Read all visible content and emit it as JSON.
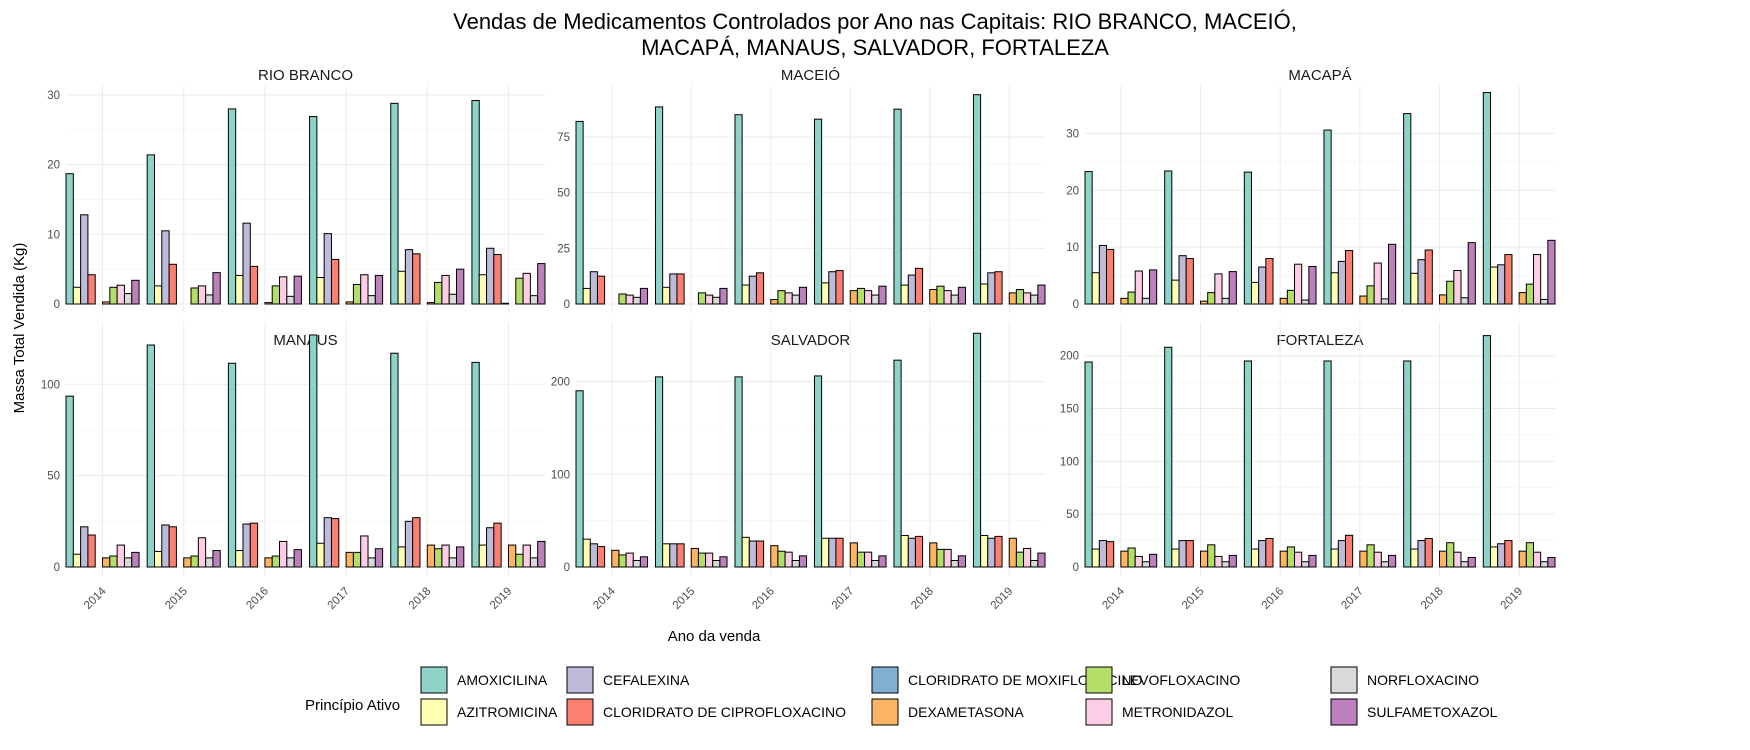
{
  "chart_data": {
    "type": "bar",
    "title_line1": "Vendas de Medicamentos Controlados por Ano nas Capitais: RIO BRANCO, MACEIÓ,",
    "title_line2": "MACAPÁ, MANAUS, SALVADOR, FORTALEZA",
    "xlabel": "Ano da venda",
    "ylabel": "Massa Total Vendida (Kg)",
    "legend_title": "Princípio Ativo",
    "legend_position": "bottom",
    "grid": true,
    "years": [
      "2014",
      "2015",
      "2016",
      "2017",
      "2018",
      "2019"
    ],
    "substances": [
      {
        "name": "AMOXICILINA",
        "color": "#8DD3C7"
      },
      {
        "name": "AZITROMICINA",
        "color": "#FFFFB3"
      },
      {
        "name": "CEFALEXINA",
        "color": "#BEBADA"
      },
      {
        "name": "CLORIDRATO DE CIPROFLOXACINO",
        "color": "#FB8072"
      },
      {
        "name": "CLORIDRATO DE MOXIFLOXACINO",
        "color": "#80B1D3"
      },
      {
        "name": "DEXAMETASONA",
        "color": "#FDB462"
      },
      {
        "name": "LEVOFLOXACINO",
        "color": "#B3DE69"
      },
      {
        "name": "METRONIDAZOL",
        "color": "#FCCDE5"
      },
      {
        "name": "NORFLOXACINO",
        "color": "#D9D9D9"
      },
      {
        "name": "SULFAMETOXAZOL",
        "color": "#BC80BD"
      }
    ],
    "panels": [
      {
        "name": "RIO BRANCO",
        "ylim": [
          0,
          31
        ],
        "yticks": [
          0,
          10,
          20,
          30
        ],
        "values": [
          [
            18.7,
            2.4,
            12.8,
            4.2,
            0,
            0.3,
            2.4,
            2.7,
            1.5,
            3.4
          ],
          [
            21.4,
            2.6,
            10.5,
            5.7,
            0,
            0,
            2.3,
            2.6,
            1.3,
            4.5
          ],
          [
            28.0,
            4.1,
            11.6,
            5.4,
            0,
            0.2,
            2.6,
            3.9,
            1.1,
            4.0
          ],
          [
            26.9,
            3.8,
            10.1,
            6.4,
            0,
            0.3,
            2.8,
            4.2,
            1.2,
            4.1
          ],
          [
            28.8,
            4.7,
            7.8,
            7.2,
            0,
            0.2,
            3.1,
            4.1,
            1.4,
            5.0
          ],
          [
            29.2,
            4.2,
            8.0,
            7.1,
            0.1,
            0,
            3.7,
            4.4,
            1.2,
            5.8
          ]
        ]
      },
      {
        "name": "MACEIÓ",
        "ylim": [
          0,
          97
        ],
        "yticks": [
          0,
          25,
          50,
          75
        ],
        "values": [
          [
            82,
            7,
            14.5,
            12.5,
            0,
            0,
            4.5,
            4,
            3,
            7
          ],
          [
            88.5,
            7.5,
            13.5,
            13.5,
            0,
            0,
            5,
            4,
            3,
            7
          ],
          [
            85,
            8.5,
            12.5,
            14,
            0,
            2,
            6,
            5,
            4,
            7.5
          ],
          [
            83,
            9.5,
            14.5,
            15,
            0,
            6,
            7,
            6,
            4,
            8
          ],
          [
            87.5,
            8.5,
            13,
            16,
            0,
            6.5,
            8,
            6,
            4,
            7.5
          ],
          [
            94,
            9,
            14,
            14.5,
            0,
            5,
            6.5,
            5,
            4,
            8.5
          ]
        ]
      },
      {
        "name": "MACAPÁ",
        "ylim": [
          0,
          38
        ],
        "yticks": [
          0,
          10,
          20,
          30
        ],
        "values": [
          [
            23.3,
            5.5,
            10.3,
            9.6,
            0,
            1.0,
            2.1,
            5.8,
            1.0,
            6.0
          ],
          [
            23.4,
            4.2,
            8.5,
            8.0,
            0,
            0.5,
            2.0,
            5.3,
            1.0,
            5.7
          ],
          [
            23.2,
            3.8,
            6.5,
            8.0,
            0,
            1.0,
            2.4,
            7.0,
            0.7,
            6.6
          ],
          [
            30.6,
            5.5,
            7.5,
            9.4,
            0,
            1.4,
            3.2,
            7.2,
            0.9,
            10.5
          ],
          [
            33.5,
            5.4,
            7.8,
            9.5,
            0,
            1.6,
            4.0,
            5.9,
            1.1,
            10.8
          ],
          [
            37.2,
            6.5,
            6.9,
            8.7,
            0,
            2.0,
            3.5,
            8.7,
            0.8,
            11.2
          ]
        ]
      },
      {
        "name": "MANAUS",
        "ylim": [
          0,
          133
        ],
        "yticks": [
          0,
          50,
          100
        ],
        "values": [
          [
            93.5,
            7,
            22,
            17.5,
            0,
            5,
            6,
            12,
            5,
            8
          ],
          [
            121.5,
            8.5,
            23,
            22,
            0,
            5,
            6,
            16,
            5,
            9
          ],
          [
            111.5,
            9,
            23.5,
            24,
            0,
            5,
            6,
            14,
            5,
            9.5
          ],
          [
            127,
            13,
            27,
            26.5,
            0,
            8,
            8,
            17,
            5,
            10
          ],
          [
            117,
            11,
            25,
            27,
            0,
            12,
            10,
            12,
            5,
            11
          ],
          [
            112,
            12,
            21.5,
            24,
            0,
            12,
            7,
            12,
            5,
            14
          ]
        ]
      },
      {
        "name": "SALVADOR",
        "ylim": [
          0,
          262
        ],
        "yticks": [
          0,
          100,
          200
        ],
        "values": [
          [
            190,
            30,
            25,
            22,
            0,
            18,
            13,
            15,
            7,
            11
          ],
          [
            205,
            25,
            25,
            25,
            0,
            20,
            15,
            15,
            7,
            11
          ],
          [
            205,
            32,
            28,
            28,
            0,
            23,
            17,
            16,
            7,
            12
          ],
          [
            206,
            31,
            31,
            31,
            0,
            26,
            16,
            16,
            7,
            12
          ],
          [
            223,
            34,
            31,
            33,
            0,
            26,
            19,
            19,
            7,
            12
          ],
          [
            252,
            34,
            31,
            33,
            0,
            31,
            16,
            20,
            7,
            15
          ]
        ]
      },
      {
        "name": "FORTALEZA",
        "ylim": [
          0,
          230
        ],
        "yticks": [
          0,
          50,
          100,
          150,
          200
        ],
        "values": [
          [
            194,
            17,
            25,
            24,
            0,
            15,
            18,
            10,
            5,
            12
          ],
          [
            208,
            17,
            25,
            25,
            0,
            15,
            21,
            10,
            5,
            11
          ],
          [
            195,
            17,
            25,
            27,
            0,
            15,
            19,
            14,
            5,
            11
          ],
          [
            195,
            17,
            25,
            30,
            0,
            15,
            21,
            14,
            5,
            11
          ],
          [
            195,
            17,
            25,
            27,
            0,
            15,
            23,
            14,
            5,
            9
          ],
          [
            219,
            19,
            22,
            25,
            0,
            15,
            23,
            14,
            5,
            9
          ]
        ]
      }
    ]
  }
}
